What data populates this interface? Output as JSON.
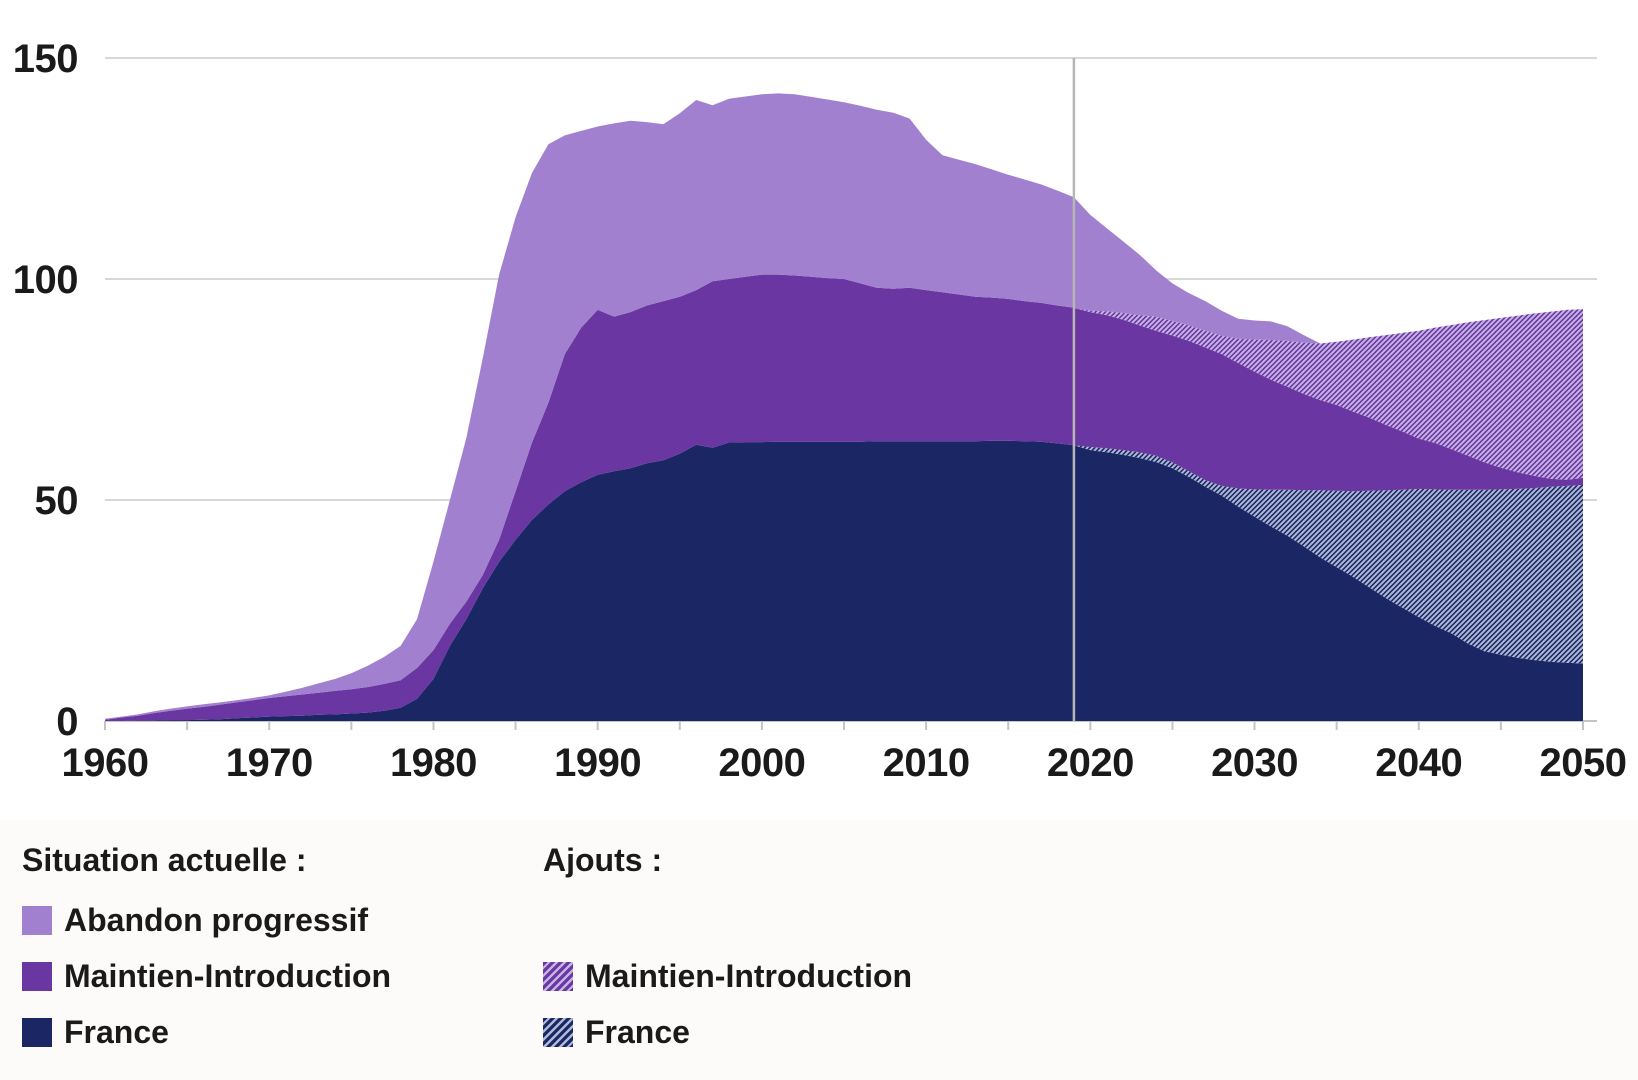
{
  "colors": {
    "abandon": "#a180cf",
    "maintien": "#6a36a1",
    "france": "#1b2664",
    "maintien_hatch_stripe": "#c5b3e6",
    "france_hatch_stripe": "#aeb9d6",
    "gridline": "#d8d8d8",
    "axis_line": "#c4c4c4",
    "divider_line": "#b6b6b6",
    "text": "#1a1a1a",
    "legend_background": "#fdfbf9"
  },
  "legend": {
    "columns": [
      {
        "title": "Situation actuelle :",
        "items": [
          {
            "label": "Abandon progressif",
            "swatch": "abandon",
            "row": 1
          },
          {
            "label": "Maintien-Introduction",
            "swatch": "maintien",
            "row": 2
          },
          {
            "label": "France",
            "swatch": "france",
            "row": 3
          }
        ]
      },
      {
        "title": "Ajouts :",
        "items": [
          {
            "label": "Maintien-Introduction",
            "swatch": "hatch-maintien",
            "row": 2
          },
          {
            "label": "France",
            "swatch": "hatch-france",
            "row": 3
          }
        ]
      }
    ]
  },
  "chart_data": {
    "type": "area",
    "stacked": true,
    "title": "",
    "xlabel": "",
    "ylabel": "",
    "x_range": [
      1960,
      2050
    ],
    "x_step": 1,
    "y_range": [
      0,
      150
    ],
    "y_ticks": [
      0,
      50,
      100,
      150
    ],
    "x_ticks_labeled": [
      1960,
      1970,
      1980,
      1990,
      2000,
      2010,
      2020,
      2030,
      2040,
      2050
    ],
    "x_minor_tick_step": 5,
    "grid": true,
    "divider_year": 2019,
    "legend_position": "bottom",
    "series": [
      {
        "id": "france",
        "name": "France",
        "group": "Situation actuelle :",
        "style": "solid",
        "values": [
          0,
          0,
          0.1,
          0.1,
          0.2,
          0.2,
          0.3,
          0.4,
          0.6,
          0.8,
          1,
          1.1,
          1.2,
          1.4,
          1.5,
          1.7,
          1.9,
          2.3,
          3,
          5,
          9.5,
          17,
          23,
          30,
          36,
          41,
          45.5,
          49,
          52,
          54,
          55.7,
          56.5,
          57.2,
          58.3,
          59,
          60.5,
          62.5,
          61.8,
          63,
          63.1,
          63.1,
          63.2,
          63.2,
          63.2,
          63.2,
          63.2,
          63.2,
          63.3,
          63.3,
          63.3,
          63.3,
          63.3,
          63.3,
          63.3,
          63.4,
          63.4,
          63.3,
          63.2,
          62.8,
          62.4,
          61.3,
          60.8,
          60.2,
          59.5,
          58.6,
          57.2,
          55.2,
          53,
          51,
          48.5,
          46.2,
          44,
          41.9,
          39.5,
          37,
          34.8,
          32.6,
          30.2,
          27.8,
          25.6,
          23.5,
          21.5,
          19.8,
          17.5,
          15.8,
          15,
          14.3,
          13.8,
          13.4,
          13.2,
          13
        ]
      },
      {
        "id": "ajouts_france",
        "name": "France",
        "group": "Ajouts :",
        "style": "hatch",
        "values": [
          0,
          0,
          0,
          0,
          0,
          0,
          0,
          0,
          0,
          0,
          0,
          0,
          0,
          0,
          0,
          0,
          0,
          0,
          0,
          0,
          0,
          0,
          0,
          0,
          0,
          0,
          0,
          0,
          0,
          0,
          0,
          0,
          0,
          0,
          0,
          0,
          0,
          0,
          0,
          0,
          0,
          0,
          0,
          0,
          0,
          0,
          0,
          0,
          0,
          0,
          0,
          0,
          0,
          0,
          0,
          0,
          0,
          0,
          0,
          0,
          0.7,
          0.9,
          1.1,
          1.3,
          1.4,
          1.3,
          1.3,
          1.5,
          2.2,
          4.1,
          6.2,
          8.3,
          10.4,
          12.7,
          15.2,
          17.3,
          19.4,
          21.9,
          24.4,
          26.7,
          29,
          30.9,
          32.5,
          34.8,
          36.5,
          37.4,
          38.2,
          38.9,
          39.6,
          40,
          40.4
        ]
      },
      {
        "id": "maintien",
        "name": "Maintien-Introduction",
        "group": "Situation actuelle :",
        "style": "solid",
        "values": [
          0.3,
          0.8,
          1.1,
          1.7,
          2.1,
          2.6,
          2.9,
          3.3,
          3.6,
          3.9,
          4.2,
          4.5,
          4.8,
          5,
          5.3,
          5.5,
          5.8,
          6.1,
          6.2,
          7,
          6.5,
          5,
          4,
          3,
          5,
          11,
          17.5,
          23,
          31,
          35,
          37.3,
          35,
          35.3,
          35.7,
          36,
          35.5,
          35,
          37.7,
          37,
          37.4,
          37.9,
          37.8,
          37.6,
          37.3,
          37,
          36.8,
          35.8,
          34.7,
          34.5,
          34.7,
          34.2,
          33.7,
          33.2,
          32.7,
          32.4,
          32.1,
          31.7,
          31.4,
          31.2,
          31.1,
          30.5,
          30.1,
          29.5,
          28.7,
          28.3,
          28.7,
          29.5,
          30,
          29.8,
          28.4,
          26.6,
          24.9,
          23.3,
          21.8,
          20.4,
          19.4,
          18,
          16.5,
          14.8,
          13.2,
          11.4,
          10.5,
          9.2,
          7.7,
          6.2,
          4.9,
          3.8,
          2.8,
          1.8,
          1.4,
          1.6
        ]
      },
      {
        "id": "ajouts_maintien",
        "name": "Maintien-Introduction",
        "group": "Ajouts :",
        "style": "hatch",
        "values": [
          0,
          0,
          0,
          0,
          0,
          0,
          0,
          0,
          0,
          0,
          0,
          0,
          0,
          0,
          0,
          0,
          0,
          0,
          0,
          0,
          0,
          0,
          0,
          0,
          0,
          0,
          0,
          0,
          0,
          0,
          0,
          0,
          0,
          0,
          0,
          0,
          0,
          0,
          0,
          0,
          0,
          0,
          0,
          0,
          0,
          0,
          0,
          0,
          0,
          0,
          0,
          0,
          0,
          0,
          0,
          0,
          0,
          0,
          0,
          0,
          0.3,
          0.9,
          1.5,
          2.3,
          3.2,
          3.3,
          3.5,
          3.8,
          4.2,
          5.5,
          7.3,
          9,
          10.4,
          11.6,
          12.8,
          14.3,
          16.3,
          18.2,
          20.3,
          22.3,
          24.4,
          26.1,
          28.1,
          30.2,
          32.2,
          33.9,
          35.4,
          36.7,
          37.8,
          38.4,
          38.2
        ]
      },
      {
        "id": "abandon",
        "name": "Abandon progressif",
        "group": "Situation actuelle :",
        "style": "solid",
        "values": [
          0.2,
          0.2,
          0.3,
          0.4,
          0.5,
          0.5,
          0.6,
          0.5,
          0.5,
          0.5,
          0.6,
          1,
          1.5,
          2.1,
          2.7,
          3.6,
          4.8,
          6.1,
          7.8,
          11,
          20,
          28,
          37,
          49,
          60,
          62,
          61,
          58.5,
          49.5,
          44.5,
          41.5,
          43.7,
          43.3,
          41.5,
          40,
          41.5,
          43,
          39.8,
          40.8,
          40.8,
          40.8,
          41,
          41,
          40.7,
          40.4,
          40,
          40.2,
          40.3,
          39.8,
          38.3,
          34,
          31,
          30.5,
          30,
          29,
          28.1,
          27.5,
          26.8,
          26,
          25,
          21.7,
          18.8,
          16.2,
          13.7,
          10.5,
          8.5,
          7.3,
          6.7,
          5.6,
          4.5,
          4.3,
          4.2,
          3.3,
          1.7,
          0,
          0,
          0,
          0,
          0,
          0,
          0,
          0,
          0,
          0,
          0,
          0,
          0,
          0,
          0,
          0,
          0
        ]
      }
    ]
  }
}
